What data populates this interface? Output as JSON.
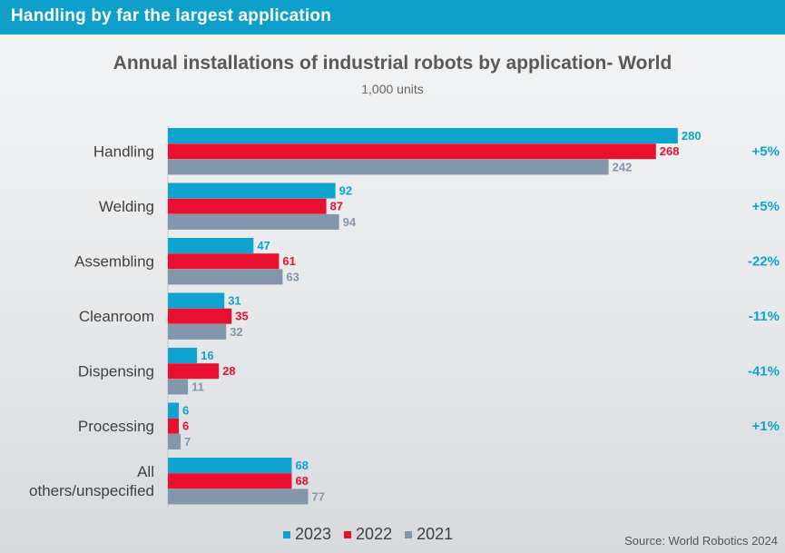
{
  "banner": {
    "title": "Handling by far the largest application"
  },
  "chart_data": {
    "type": "bar",
    "orientation": "horizontal",
    "title": "Annual installations of industrial robots by application- World",
    "subtitle": "1,000 units",
    "categories": [
      "Handling",
      "Welding",
      "Assembling",
      "Cleanroom",
      "Dispensing",
      "Processing",
      "All others/unspecified"
    ],
    "category_lines": [
      [
        "Handling"
      ],
      [
        "Welding"
      ],
      [
        "Assembling"
      ],
      [
        "Cleanroom"
      ],
      [
        "Dispensing"
      ],
      [
        "Processing"
      ],
      [
        "All",
        "others/unspecified"
      ]
    ],
    "series": [
      {
        "name": "2023",
        "color": "#0fa3cf",
        "values": [
          280,
          92,
          47,
          31,
          16,
          6,
          68
        ]
      },
      {
        "name": "2022",
        "color": "#e8102e",
        "values": [
          268,
          87,
          61,
          35,
          28,
          6,
          68
        ]
      },
      {
        "name": "2021",
        "color": "#8496ac",
        "values": [
          242,
          94,
          63,
          32,
          11,
          7,
          77
        ]
      }
    ],
    "changes": [
      "+5%",
      "+5%",
      "-22%",
      "-11%",
      "-41%",
      "+1%",
      ""
    ],
    "change_color": "#0fa3cf",
    "xlim": [
      0,
      300
    ],
    "grid": false,
    "legend_position": "bottom"
  },
  "source": "Source: World Robotics 2024"
}
